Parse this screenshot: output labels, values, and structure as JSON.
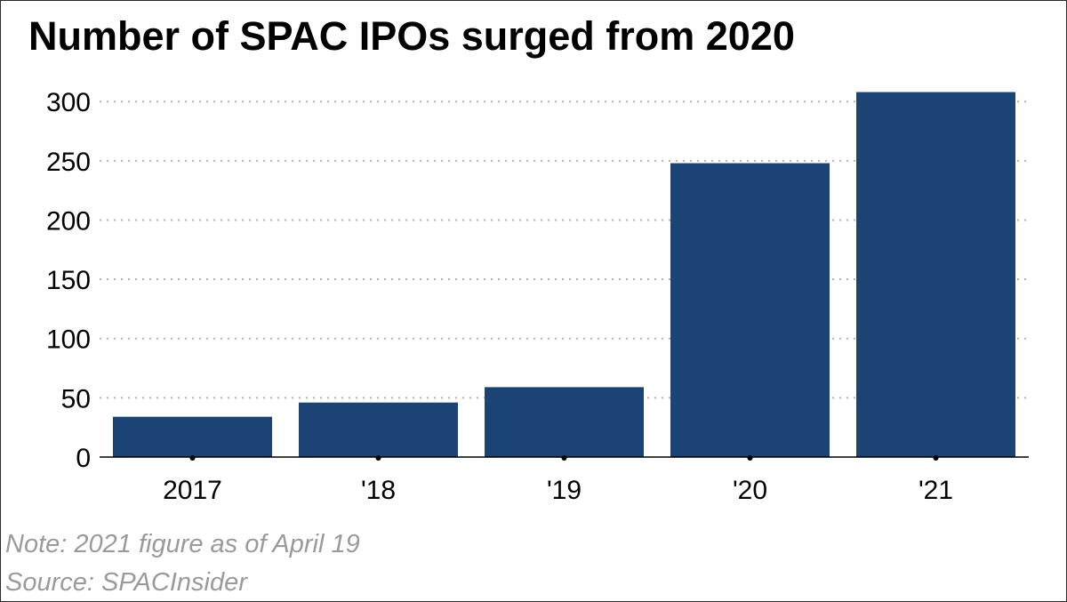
{
  "chart_data": {
    "type": "bar",
    "title": "Number of SPAC IPOs surged from 2020",
    "categories": [
      "2017",
      "'18",
      "'19",
      "'20",
      "'21"
    ],
    "values": [
      34,
      46,
      59,
      248,
      308
    ],
    "ylim": [
      0,
      310
    ],
    "yticks": [
      0,
      50,
      100,
      150,
      200,
      250,
      300
    ],
    "xlabel": "",
    "ylabel": "",
    "grid": "horizontal dotted",
    "legend": "none",
    "bar_color": "#1b4474"
  },
  "footer": {
    "note": "Note: 2021 figure as of April 19",
    "source": "Source: SPACInsider"
  }
}
